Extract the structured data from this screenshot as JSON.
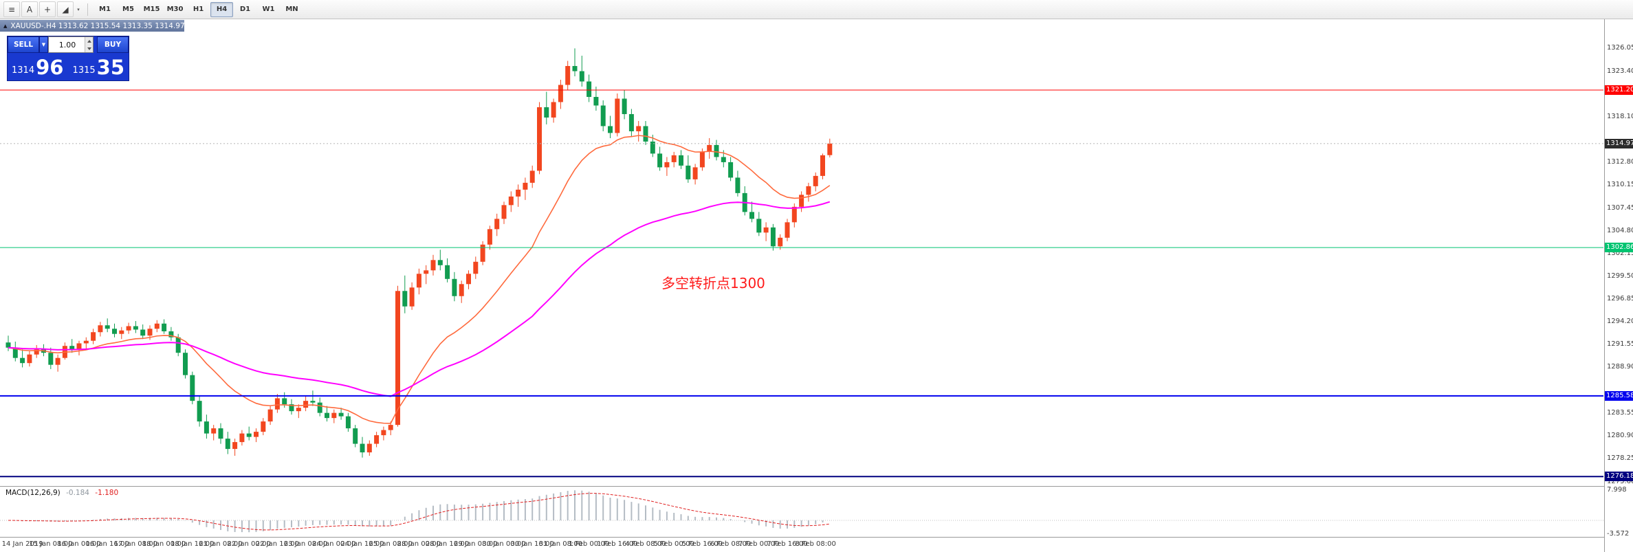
{
  "toolbar": {
    "tools": [
      {
        "name": "chart-mode-icon",
        "glyph": "≡"
      },
      {
        "name": "text-tool-icon",
        "glyph": "A"
      },
      {
        "name": "crosshair-icon",
        "glyph": "+"
      },
      {
        "name": "draw-tools-icon",
        "glyph": "◢"
      }
    ],
    "draw_caret": "▾",
    "timeframes": [
      "M1",
      "M5",
      "M15",
      "M30",
      "H1",
      "H4",
      "D1",
      "W1",
      "MN"
    ],
    "active_timeframe": "H4"
  },
  "chart_header": {
    "window_icon": "▲",
    "title": "XAUUSD-.H4  1313.62 1315.54 1313.35 1314.97"
  },
  "trade_panel": {
    "sell_label": "SELL",
    "buy_label": "BUY",
    "caret_glyph": "▼",
    "lot_value": "1.00",
    "sell_big": "1314",
    "sell_pips": "96",
    "buy_big": "1315",
    "buy_pips": "35"
  },
  "annotation": {
    "text": "多空转折点1300",
    "color": "#ff1a1a"
  },
  "price_axis": {
    "labels": [
      "1326.05",
      "1323.40",
      "1318.10",
      "1312.80",
      "1310.15",
      "1307.45",
      "1304.80",
      "1302.15",
      "1299.50",
      "1296.85",
      "1294.20",
      "1291.55",
      "1288.90",
      "1283.55",
      "1280.90",
      "1278.25",
      "1275.60"
    ],
    "tags": [
      {
        "price": 1321.2,
        "label": "1321.20",
        "color": "#ff0000"
      },
      {
        "price": 1314.97,
        "label": "1314.97",
        "color": "#2b2b2b"
      },
      {
        "price": 1302.86,
        "label": "1302.86",
        "color": "#00c470"
      },
      {
        "price": 1285.58,
        "label": "1285.58",
        "color": "#0000ee"
      },
      {
        "price": 1276.18,
        "label": "1276.18",
        "color": "#000080"
      }
    ]
  },
  "colors": {
    "up": "#f2461f",
    "down": "#119c50",
    "ma_fast": "#ff6a3d",
    "ma_slow": "#ff00ff",
    "bid_line": "#b5b5b5",
    "macd_hist": "#b4bcc4",
    "macd_signal": "#e01f1f"
  },
  "chart_data": {
    "type": "candlestick",
    "symbol": "XAUUSD-",
    "timeframe": "H4",
    "ohlc_current": {
      "open": 1313.62,
      "high": 1315.54,
      "low": 1313.35,
      "close": 1314.97
    },
    "current_price": 1314.97,
    "ylim": [
      1275.2,
      1329.5
    ],
    "ma_fast": {
      "period": 18,
      "color": "#ff6a3d"
    },
    "ma_slow": {
      "period": 55,
      "color": "#ff00ff"
    },
    "hlines": [
      {
        "price": 1321.2,
        "color": "#ff0000",
        "width": 1
      },
      {
        "price": 1302.86,
        "color": "#00c470",
        "width": 1
      },
      {
        "price": 1285.58,
        "color": "#0000ee",
        "width": 2
      },
      {
        "price": 1276.18,
        "color": "#000080",
        "width": 2
      }
    ],
    "macd": {
      "label": "MACD(12,26,9)",
      "main_value": "-0.184",
      "signal_value": "-1.180",
      "axis_labels": [
        "7.998",
        "-3.572"
      ]
    },
    "time_labels": [
      "14 Jan 2019",
      "15 Jan 08:00",
      "16 Jan 00:00",
      "16 Jan 16:00",
      "17 Jan 08:00",
      "18 Jan 00:00",
      "18 Jan 16:00",
      "21 Jan 08:00",
      "22 Jan 00:00",
      "22 Jan 16:00",
      "23 Jan 08:00",
      "24 Jan 00:00",
      "24 Jan 16:00",
      "25 Jan 08:00",
      "28 Jan 00:00",
      "28 Jan 16:00",
      "29 Jan 08:00",
      "30 Jan 00:00",
      "30 Jan 16:00",
      "31 Jan 08:00",
      "1 Feb 00:00",
      "1 Feb 16:00",
      "4 Feb 08:00",
      "5 Feb 00:00",
      "5 Feb 16:00",
      "6 Feb 08:00",
      "7 Feb 00:00",
      "7 Feb 16:00",
      "8 Feb 08:00"
    ],
    "candles": [
      [
        1291.8,
        1292.6,
        1290.8,
        1291.2
      ],
      [
        1291.2,
        1291.9,
        1289.6,
        1290.0
      ],
      [
        1290.0,
        1291.0,
        1288.9,
        1289.4
      ],
      [
        1289.4,
        1290.8,
        1289.0,
        1290.4
      ],
      [
        1290.4,
        1291.5,
        1290.0,
        1291.0
      ],
      [
        1291.0,
        1291.6,
        1290.2,
        1290.6
      ],
      [
        1290.6,
        1291.2,
        1288.7,
        1289.2
      ],
      [
        1289.2,
        1290.4,
        1288.4,
        1290.0
      ],
      [
        1290.0,
        1291.8,
        1289.8,
        1291.4
      ],
      [
        1291.4,
        1292.2,
        1290.6,
        1291.0
      ],
      [
        1291.0,
        1292.0,
        1290.3,
        1291.7
      ],
      [
        1291.7,
        1292.4,
        1291.0,
        1292.0
      ],
      [
        1292.0,
        1293.4,
        1291.6,
        1293.0
      ],
      [
        1293.0,
        1294.2,
        1292.5,
        1293.8
      ],
      [
        1293.8,
        1294.6,
        1293.0,
        1293.4
      ],
      [
        1293.4,
        1294.0,
        1292.4,
        1292.8
      ],
      [
        1292.8,
        1293.6,
        1292.2,
        1293.2
      ],
      [
        1293.2,
        1294.1,
        1292.8,
        1293.7
      ],
      [
        1293.7,
        1294.3,
        1292.9,
        1293.3
      ],
      [
        1293.3,
        1293.9,
        1292.2,
        1292.6
      ],
      [
        1292.6,
        1293.8,
        1292.1,
        1293.4
      ],
      [
        1293.4,
        1294.4,
        1293.0,
        1294.0
      ],
      [
        1294.0,
        1294.5,
        1292.8,
        1293.1
      ],
      [
        1293.1,
        1293.6,
        1292.0,
        1292.4
      ],
      [
        1292.4,
        1292.8,
        1290.2,
        1290.6
      ],
      [
        1290.6,
        1291.0,
        1287.6,
        1288.0
      ],
      [
        1288.0,
        1288.4,
        1284.6,
        1285.0
      ],
      [
        1285.0,
        1285.6,
        1282.0,
        1282.6
      ],
      [
        1282.6,
        1283.4,
        1280.6,
        1281.2
      ],
      [
        1281.2,
        1282.2,
        1280.4,
        1281.8
      ],
      [
        1281.8,
        1282.4,
        1280.0,
        1280.6
      ],
      [
        1280.6,
        1281.4,
        1278.8,
        1279.4
      ],
      [
        1279.4,
        1280.6,
        1278.6,
        1280.2
      ],
      [
        1280.2,
        1281.6,
        1279.8,
        1281.2
      ],
      [
        1281.2,
        1282.0,
        1280.4,
        1280.8
      ],
      [
        1280.8,
        1281.8,
        1280.2,
        1281.4
      ],
      [
        1281.4,
        1283.0,
        1281.0,
        1282.6
      ],
      [
        1282.6,
        1284.4,
        1282.2,
        1284.0
      ],
      [
        1284.0,
        1285.8,
        1283.6,
        1285.3
      ],
      [
        1285.3,
        1286.0,
        1284.2,
        1284.6
      ],
      [
        1284.6,
        1285.2,
        1283.4,
        1283.8
      ],
      [
        1283.8,
        1284.6,
        1283.0,
        1284.2
      ],
      [
        1284.2,
        1285.6,
        1283.8,
        1285.0
      ],
      [
        1285.0,
        1286.2,
        1284.4,
        1284.8
      ],
      [
        1284.8,
        1285.4,
        1283.2,
        1283.6
      ],
      [
        1283.6,
        1284.4,
        1282.6,
        1283.0
      ],
      [
        1283.0,
        1284.0,
        1282.4,
        1283.6
      ],
      [
        1283.6,
        1284.2,
        1282.8,
        1283.2
      ],
      [
        1283.2,
        1283.6,
        1281.4,
        1281.8
      ],
      [
        1281.8,
        1282.2,
        1279.6,
        1280.0
      ],
      [
        1280.0,
        1280.8,
        1278.4,
        1279.0
      ],
      [
        1279.0,
        1280.4,
        1278.6,
        1280.0
      ],
      [
        1280.0,
        1281.4,
        1279.6,
        1281.0
      ],
      [
        1281.0,
        1282.0,
        1280.4,
        1281.6
      ],
      [
        1281.6,
        1282.6,
        1281.0,
        1282.2
      ],
      [
        1282.2,
        1298.4,
        1282.0,
        1297.8
      ],
      [
        1297.8,
        1299.6,
        1295.2,
        1296.0
      ],
      [
        1296.0,
        1298.8,
        1295.6,
        1298.2
      ],
      [
        1298.2,
        1300.4,
        1297.4,
        1299.8
      ],
      [
        1299.8,
        1300.8,
        1298.6,
        1300.2
      ],
      [
        1300.2,
        1302.0,
        1299.6,
        1301.4
      ],
      [
        1301.4,
        1302.6,
        1300.2,
        1300.8
      ],
      [
        1300.8,
        1301.6,
        1298.8,
        1299.2
      ],
      [
        1299.2,
        1300.0,
        1296.6,
        1297.2
      ],
      [
        1297.2,
        1299.0,
        1296.4,
        1298.6
      ],
      [
        1298.6,
        1300.2,
        1298.0,
        1299.8
      ],
      [
        1299.8,
        1301.8,
        1299.2,
        1301.2
      ],
      [
        1301.2,
        1303.6,
        1300.8,
        1303.2
      ],
      [
        1303.2,
        1305.4,
        1302.6,
        1305.0
      ],
      [
        1305.0,
        1306.8,
        1304.2,
        1306.2
      ],
      [
        1306.2,
        1308.2,
        1305.6,
        1307.8
      ],
      [
        1307.8,
        1309.4,
        1307.0,
        1308.8
      ],
      [
        1308.8,
        1310.2,
        1307.6,
        1309.6
      ],
      [
        1309.6,
        1311.0,
        1308.4,
        1310.4
      ],
      [
        1310.4,
        1312.4,
        1309.8,
        1311.8
      ],
      [
        1311.8,
        1319.8,
        1311.4,
        1319.2
      ],
      [
        1319.2,
        1321.0,
        1317.2,
        1318.0
      ],
      [
        1318.0,
        1320.2,
        1317.4,
        1319.8
      ],
      [
        1319.8,
        1322.4,
        1319.0,
        1321.8
      ],
      [
        1321.8,
        1324.6,
        1321.2,
        1324.0
      ],
      [
        1324.0,
        1326.05,
        1322.8,
        1323.4
      ],
      [
        1323.4,
        1325.2,
        1321.6,
        1322.2
      ],
      [
        1322.2,
        1323.0,
        1319.8,
        1320.4
      ],
      [
        1320.4,
        1321.6,
        1318.8,
        1319.4
      ],
      [
        1319.4,
        1320.0,
        1316.4,
        1317.0
      ],
      [
        1317.0,
        1318.2,
        1315.6,
        1316.2
      ],
      [
        1316.2,
        1320.8,
        1315.8,
        1320.2
      ],
      [
        1320.2,
        1321.2,
        1317.8,
        1318.4
      ],
      [
        1318.4,
        1319.0,
        1315.8,
        1316.4
      ],
      [
        1316.4,
        1317.6,
        1315.2,
        1317.0
      ],
      [
        1317.0,
        1317.6,
        1314.8,
        1315.2
      ],
      [
        1315.2,
        1316.0,
        1313.4,
        1313.8
      ],
      [
        1313.8,
        1314.6,
        1311.8,
        1312.2
      ],
      [
        1312.2,
        1313.4,
        1311.2,
        1312.8
      ],
      [
        1312.8,
        1314.0,
        1312.2,
        1313.6
      ],
      [
        1313.6,
        1314.2,
        1312.0,
        1312.4
      ],
      [
        1312.4,
        1313.6,
        1310.4,
        1310.8
      ],
      [
        1310.8,
        1312.6,
        1310.2,
        1312.2
      ],
      [
        1312.2,
        1314.4,
        1311.8,
        1314.0
      ],
      [
        1314.0,
        1315.6,
        1313.2,
        1314.8
      ],
      [
        1314.8,
        1315.4,
        1313.0,
        1313.4
      ],
      [
        1313.4,
        1314.2,
        1312.2,
        1312.8
      ],
      [
        1312.8,
        1313.4,
        1310.6,
        1311.0
      ],
      [
        1311.0,
        1311.8,
        1308.8,
        1309.2
      ],
      [
        1309.2,
        1310.0,
        1306.6,
        1307.0
      ],
      [
        1307.0,
        1308.2,
        1305.8,
        1306.2
      ],
      [
        1306.2,
        1307.0,
        1304.2,
        1304.6
      ],
      [
        1304.6,
        1305.8,
        1303.6,
        1305.2
      ],
      [
        1305.2,
        1305.6,
        1302.5,
        1303.0
      ],
      [
        1303.0,
        1304.4,
        1302.6,
        1304.0
      ],
      [
        1304.0,
        1306.2,
        1303.6,
        1305.8
      ],
      [
        1305.8,
        1308.0,
        1305.2,
        1307.6
      ],
      [
        1307.6,
        1309.4,
        1307.0,
        1309.0
      ],
      [
        1309.0,
        1310.4,
        1308.2,
        1310.0
      ],
      [
        1310.0,
        1311.6,
        1309.4,
        1311.2
      ],
      [
        1311.2,
        1313.8,
        1310.8,
        1313.6
      ],
      [
        1313.62,
        1315.54,
        1313.35,
        1314.97
      ]
    ]
  }
}
